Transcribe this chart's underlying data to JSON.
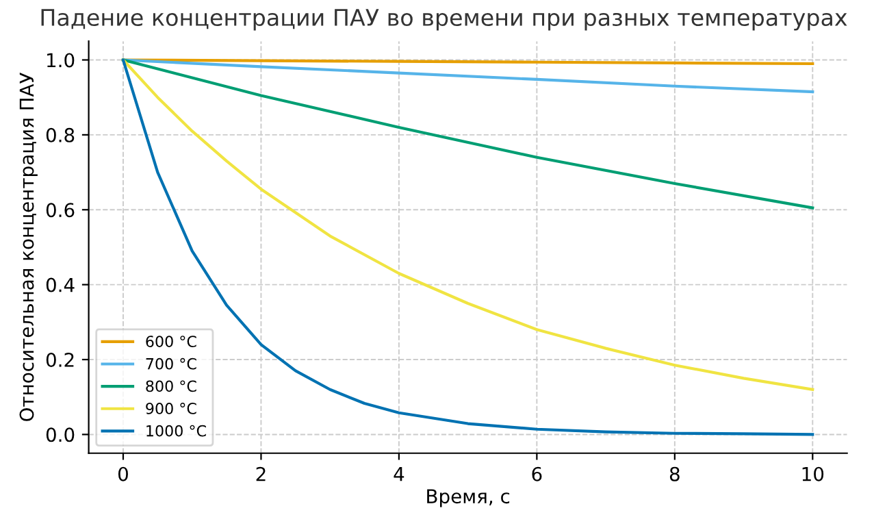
{
  "chart_data": {
    "type": "line",
    "title": "Падение концентрации ПАУ во времени при разных температурах",
    "xlabel": "Время, с",
    "ylabel": "Относительная концентрация ПАУ",
    "xlim": [
      -0.5,
      10.5
    ],
    "ylim": [
      -0.05,
      1.05
    ],
    "xticks": [
      0,
      2,
      4,
      6,
      8,
      10
    ],
    "yticks": [
      {
        "value": 0,
        "label": "0.0"
      },
      {
        "value": 0.2,
        "label": "0.2"
      },
      {
        "value": 0.4,
        "label": "0.4"
      },
      {
        "value": 0.6,
        "label": "0.6"
      },
      {
        "value": 0.8,
        "label": "0.8"
      },
      {
        "value": 1,
        "label": "1.0"
      }
    ],
    "grid": true,
    "legend": "bottom left",
    "marker": "none",
    "line_style": "solid",
    "series": [
      {
        "name": "600 °C",
        "color": "#e69f00",
        "x": [
          0,
          2,
          4,
          6,
          8,
          10
        ],
        "values": [
          1,
          0.998,
          0.996,
          0.994,
          0.992,
          0.99
        ]
      },
      {
        "name": "700 °C",
        "color": "#56b4e9",
        "x": [
          0,
          2,
          4,
          6,
          8,
          10
        ],
        "values": [
          1,
          0.982,
          0.965,
          0.948,
          0.93,
          0.915
        ]
      },
      {
        "name": "800 °C",
        "color": "#009e73",
        "x": [
          0,
          2,
          4,
          6,
          8,
          10
        ],
        "values": [
          1,
          0.905,
          0.82,
          0.74,
          0.67,
          0.605
        ]
      },
      {
        "name": "900 °C",
        "color": "#f0e442",
        "x": [
          0,
          0.5,
          1,
          1.5,
          2,
          3,
          4,
          5,
          6,
          7,
          8,
          9,
          10
        ],
        "values": [
          1,
          0.9,
          0.81,
          0.73,
          0.655,
          0.53,
          0.43,
          0.35,
          0.28,
          0.23,
          0.185,
          0.15,
          0.12
        ]
      },
      {
        "name": "1000 °C",
        "color": "#0072b2",
        "x": [
          0,
          0.5,
          1,
          1.5,
          2,
          2.5,
          3,
          3.5,
          4,
          5,
          6,
          7,
          8,
          9,
          10
        ],
        "values": [
          1,
          0.7,
          0.49,
          0.345,
          0.24,
          0.17,
          0.12,
          0.083,
          0.058,
          0.029,
          0.014,
          0.007,
          0.003,
          0.002,
          0.0
        ]
      }
    ]
  }
}
